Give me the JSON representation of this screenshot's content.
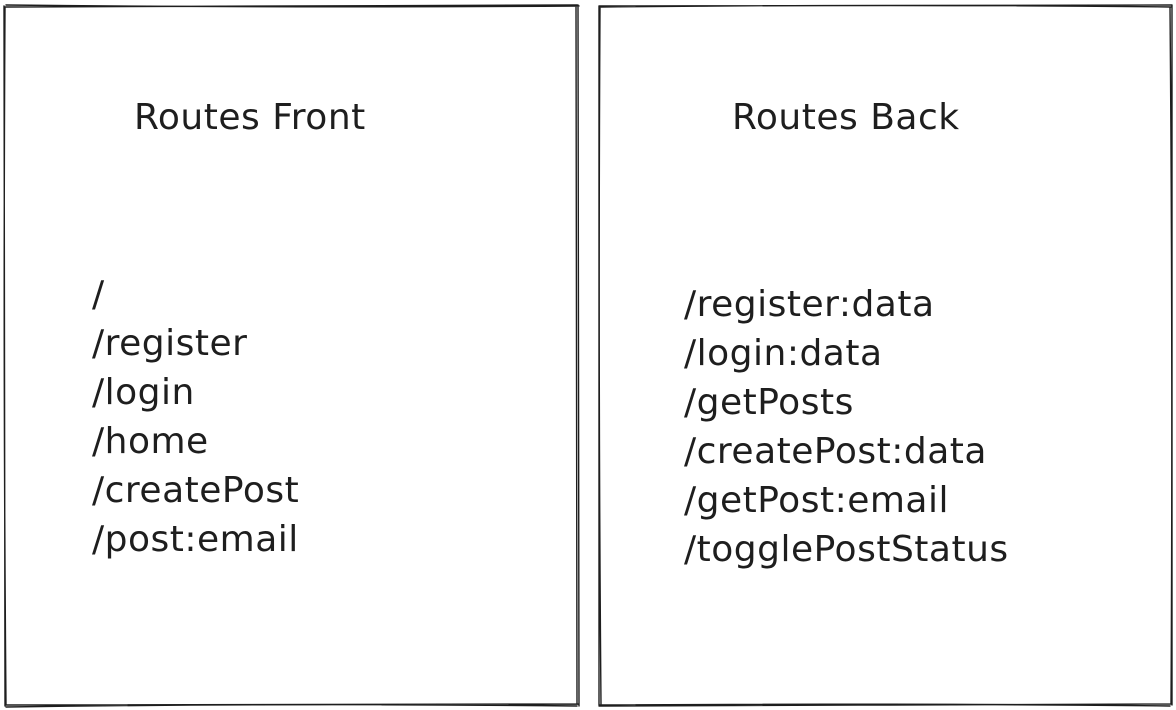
{
  "canvas": {
    "background": "#ffffff",
    "stroke_color": "#1e1e1e"
  },
  "front": {
    "title": "Routes Front",
    "routes": [
      "/",
      "/register",
      "/login",
      "/home",
      "/createPost",
      "/post:email"
    ]
  },
  "back": {
    "title": "Routes Back",
    "routes": [
      "/register:data",
      "/login:data",
      "/getPosts",
      "/createPost:data",
      "/getPost:email",
      "/togglePostStatus"
    ]
  }
}
